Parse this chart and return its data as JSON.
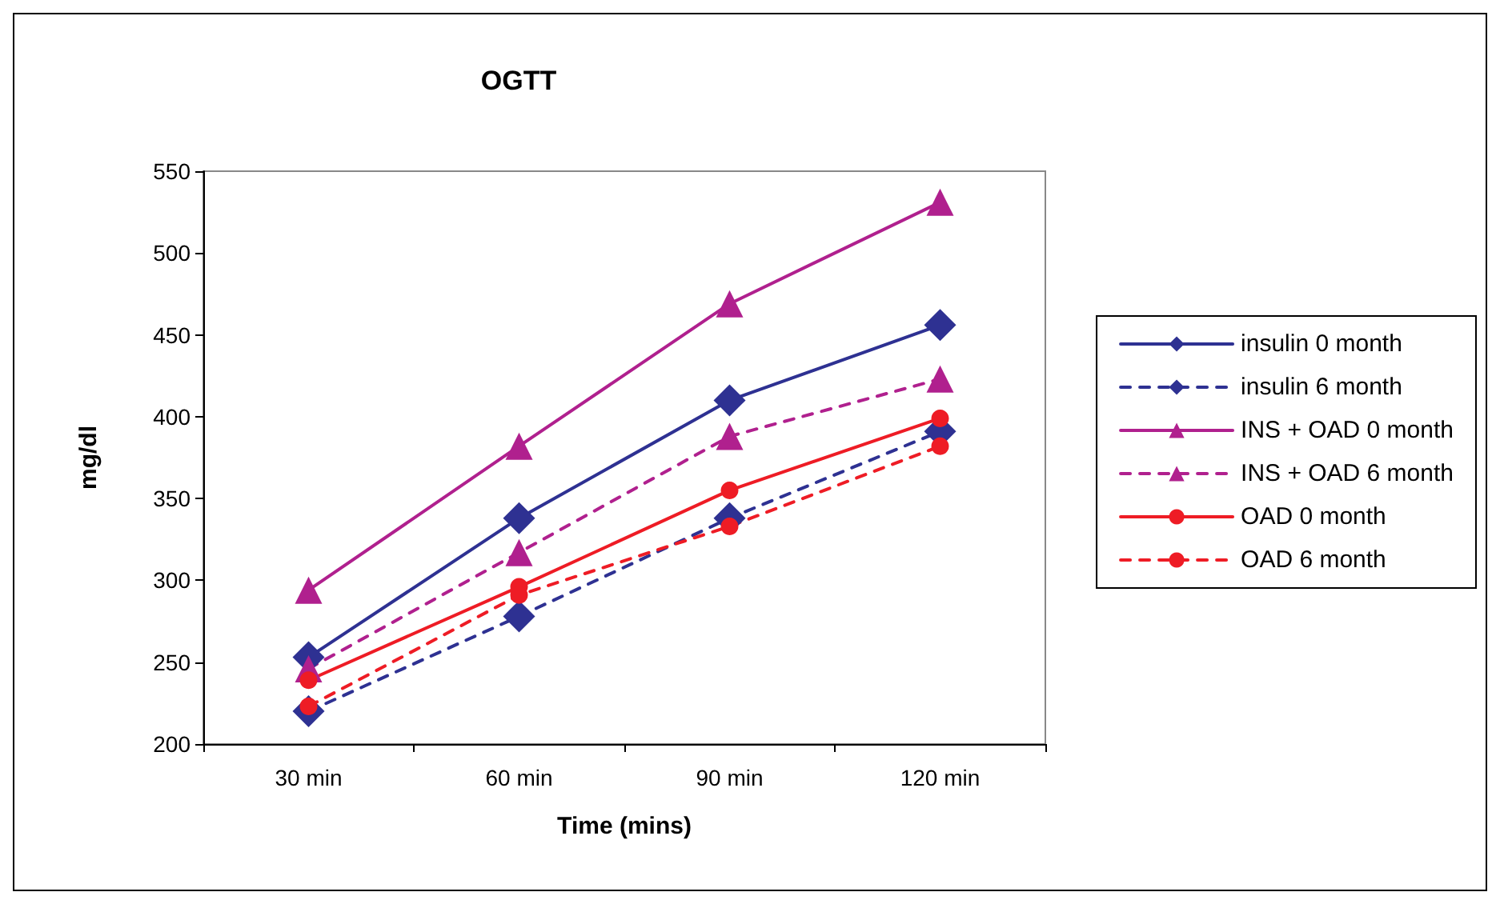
{
  "chart_data": {
    "type": "line",
    "title": "OGTT",
    "xlabel": "Time (mins)",
    "ylabel": "mg/dl",
    "categories": [
      "30 min",
      "60 min",
      "90 min",
      "120 min"
    ],
    "ylim": [
      200,
      550
    ],
    "yticks": [
      200,
      250,
      300,
      350,
      400,
      450,
      500,
      550
    ],
    "grid": false,
    "legend": "right",
    "series": [
      {
        "name": "insulin 0 month",
        "color": "#2e3192",
        "marker": "diamond",
        "line_style": "solid",
        "values": [
          253,
          338,
          410,
          456
        ]
      },
      {
        "name": "insulin 6 month",
        "color": "#2e3192",
        "marker": "diamond",
        "line_style": "dashed",
        "values": [
          220,
          278,
          338,
          391
        ]
      },
      {
        "name": "INS + OAD 0 month",
        "color": "#b0208e",
        "marker": "triangle",
        "line_style": "solid",
        "values": [
          294,
          382,
          469,
          531
        ]
      },
      {
        "name": "INS + OAD 6 month",
        "color": "#b0208e",
        "marker": "triangle",
        "line_style": "dashed",
        "values": [
          246,
          317,
          388,
          423
        ]
      },
      {
        "name": "OAD 0 month",
        "color": "#ee1c25",
        "marker": "circle",
        "line_style": "solid",
        "values": [
          239,
          296,
          355,
          399
        ]
      },
      {
        "name": "OAD 6 month",
        "color": "#ee1c25",
        "marker": "circle",
        "line_style": "dashed",
        "values": [
          223,
          291,
          333,
          382
        ]
      }
    ]
  }
}
